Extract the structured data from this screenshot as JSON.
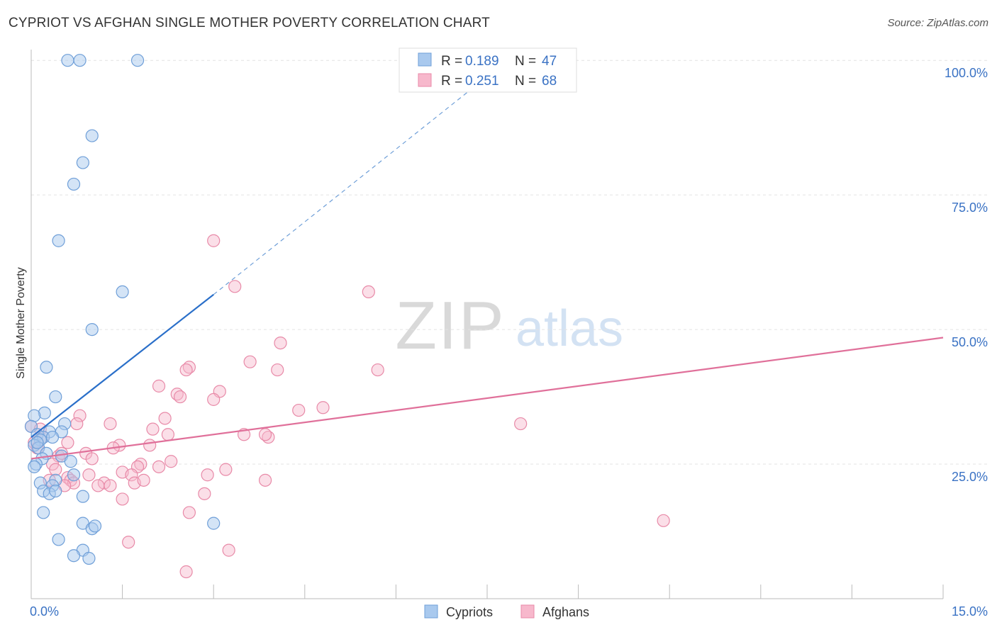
{
  "header": {
    "title": "CYPRIOT VS AFGHAN SINGLE MOTHER POVERTY CORRELATION CHART",
    "source": "Source: ZipAtlas.com"
  },
  "watermark": {
    "zip": "ZIP",
    "atlas": "atlas"
  },
  "legend_top": {
    "rows": [
      {
        "r_label": "R =",
        "r_value": "0.189",
        "n_label": "N =",
        "n_value": "47"
      },
      {
        "r_label": "R =",
        "r_value": "0.251",
        "n_label": "N =",
        "n_value": "68"
      }
    ]
  },
  "legend_bottom": {
    "items": [
      "Cypriots",
      "Afghans"
    ]
  },
  "colors": {
    "cypriots_fill": "#a9c9ee",
    "cypriots_stroke": "#6f9fd8",
    "cypriots_line": "#2a6fc9",
    "afghans_fill": "#f7b8cc",
    "afghans_stroke": "#e88aa8",
    "afghans_line": "#e0709a",
    "axis_label": "#3a72c4",
    "grid": "#e3e3e3"
  },
  "chart_data": {
    "type": "scatter",
    "title": "CYPRIOT VS AFGHAN SINGLE MOTHER POVERTY CORRELATION CHART",
    "xlabel": "",
    "ylabel": "Single Mother Poverty",
    "xlim": [
      0,
      15
    ],
    "ylim": [
      0,
      102
    ],
    "x_tick_labels": [
      "0.0%",
      "15.0%"
    ],
    "y_ticks": [
      25,
      50,
      75,
      100
    ],
    "y_tick_labels": [
      "25.0%",
      "50.0%",
      "75.0%",
      "100.0%"
    ],
    "grid": true,
    "series": [
      {
        "name": "Cypriots",
        "r": 0.189,
        "n": 47,
        "trend": {
          "x0": 0,
          "y0": 30.0,
          "x1": 3.0,
          "y1": 56.5,
          "dash_x1": 7.5,
          "dash_y1": 97
        },
        "points": [
          [
            0.6,
            100
          ],
          [
            0.8,
            100
          ],
          [
            1.75,
            100
          ],
          [
            1.0,
            86
          ],
          [
            0.85,
            81
          ],
          [
            0.7,
            77
          ],
          [
            0.45,
            66.5
          ],
          [
            1.5,
            57
          ],
          [
            1.0,
            50
          ],
          [
            0.25,
            43
          ],
          [
            0.4,
            37.5
          ],
          [
            0.22,
            34.5
          ],
          [
            0.05,
            34
          ],
          [
            0.55,
            32.5
          ],
          [
            0.0,
            32
          ],
          [
            0.3,
            31
          ],
          [
            0.1,
            30.5
          ],
          [
            0.5,
            31
          ],
          [
            0.2,
            30
          ],
          [
            0.15,
            29.5
          ],
          [
            0.35,
            30
          ],
          [
            0.05,
            28.5
          ],
          [
            0.12,
            28
          ],
          [
            0.25,
            27
          ],
          [
            0.5,
            26.5
          ],
          [
            0.18,
            26
          ],
          [
            0.65,
            25.5
          ],
          [
            0.08,
            25
          ],
          [
            0.05,
            24.5
          ],
          [
            0.7,
            23
          ],
          [
            0.4,
            22
          ],
          [
            0.15,
            21.5
          ],
          [
            0.35,
            21
          ],
          [
            0.2,
            20
          ],
          [
            0.3,
            19.5
          ],
          [
            0.4,
            20
          ],
          [
            0.85,
            19
          ],
          [
            0.2,
            16
          ],
          [
            3.0,
            14
          ],
          [
            0.85,
            14
          ],
          [
            1.0,
            13
          ],
          [
            1.05,
            13.5
          ],
          [
            0.45,
            11
          ],
          [
            0.85,
            9
          ],
          [
            0.7,
            8
          ],
          [
            0.95,
            7.5
          ],
          [
            0.1,
            29
          ]
        ]
      },
      {
        "name": "Afghans",
        "r": 0.251,
        "n": 68,
        "trend": {
          "x0": 0,
          "y0": 26.0,
          "x1": 15,
          "y1": 48.5
        },
        "points": [
          [
            3.0,
            66.5
          ],
          [
            3.35,
            58
          ],
          [
            5.55,
            57
          ],
          [
            4.1,
            47.5
          ],
          [
            3.6,
            44
          ],
          [
            2.6,
            43
          ],
          [
            2.55,
            42.5
          ],
          [
            4.05,
            42.5
          ],
          [
            5.7,
            42.5
          ],
          [
            2.1,
            39.5
          ],
          [
            3.1,
            38.5
          ],
          [
            2.4,
            38
          ],
          [
            2.45,
            37.5
          ],
          [
            3.0,
            37
          ],
          [
            4.4,
            35
          ],
          [
            4.8,
            35.5
          ],
          [
            0.8,
            34
          ],
          [
            2.2,
            33.5
          ],
          [
            1.3,
            32.5
          ],
          [
            0.75,
            32.5
          ],
          [
            2.0,
            31.5
          ],
          [
            0.0,
            32
          ],
          [
            3.5,
            30.5
          ],
          [
            2.25,
            30.5
          ],
          [
            3.9,
            30
          ],
          [
            3.85,
            30.5
          ],
          [
            0.2,
            30
          ],
          [
            0.15,
            31.5
          ],
          [
            0.6,
            29
          ],
          [
            1.45,
            28.5
          ],
          [
            1.35,
            28
          ],
          [
            1.95,
            28.5
          ],
          [
            0.9,
            27
          ],
          [
            0.45,
            26.5
          ],
          [
            0.5,
            27
          ],
          [
            1.0,
            26
          ],
          [
            0.35,
            25
          ],
          [
            1.8,
            25
          ],
          [
            2.3,
            25.5
          ],
          [
            1.75,
            24.5
          ],
          [
            2.1,
            24.5
          ],
          [
            3.2,
            24
          ],
          [
            0.4,
            24
          ],
          [
            1.5,
            23.5
          ],
          [
            1.65,
            23
          ],
          [
            0.95,
            23
          ],
          [
            2.9,
            23
          ],
          [
            0.6,
            22.5
          ],
          [
            0.65,
            22
          ],
          [
            0.3,
            22
          ],
          [
            0.7,
            21.5
          ],
          [
            0.55,
            21
          ],
          [
            1.2,
            21.5
          ],
          [
            1.3,
            21
          ],
          [
            1.1,
            21
          ],
          [
            1.7,
            21.5
          ],
          [
            1.85,
            22
          ],
          [
            3.85,
            22
          ],
          [
            2.85,
            19.5
          ],
          [
            1.5,
            18.5
          ],
          [
            2.6,
            16
          ],
          [
            8.05,
            32.5
          ],
          [
            10.4,
            14.5
          ],
          [
            1.6,
            10.5
          ],
          [
            3.25,
            9
          ],
          [
            2.55,
            5
          ],
          [
            0.05,
            29
          ],
          [
            0.1,
            28
          ]
        ]
      }
    ]
  }
}
